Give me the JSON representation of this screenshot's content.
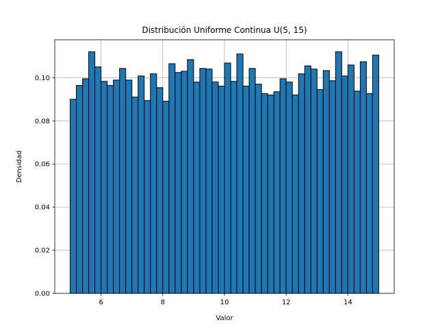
{
  "chart_data": {
    "type": "bar",
    "title": "Distribución Uniforme Continua U(5, 15)",
    "xlabel": "Valor",
    "ylabel": "Densidad",
    "xlim": [
      4.5,
      15.5
    ],
    "ylim": [
      0.0,
      0.1176
    ],
    "grid": true,
    "bin_start": 5,
    "bin_end": 15,
    "bin_width": 0.2,
    "values": [
      0.09,
      0.0964,
      0.0995,
      0.112,
      0.105,
      0.0983,
      0.0964,
      0.0989,
      0.1043,
      0.0989,
      0.091,
      0.1008,
      0.0894,
      0.1018,
      0.0954,
      0.0891,
      0.1065,
      0.1024,
      0.103,
      0.1084,
      0.098,
      0.1043,
      0.104,
      0.098,
      0.0961,
      0.1068,
      0.0983,
      0.111,
      0.0961,
      0.1043,
      0.097,
      0.0926,
      0.092,
      0.0935,
      0.0995,
      0.098,
      0.092,
      0.1018,
      0.1055,
      0.104,
      0.0945,
      0.1033,
      0.0986,
      0.112,
      0.1008,
      0.1059,
      0.0938,
      0.1074,
      0.0926,
      0.1105
    ],
    "xticks": [
      6,
      8,
      10,
      12,
      14
    ],
    "xtick_labels": [
      "6",
      "8",
      "10",
      "12",
      "14"
    ],
    "yticks": [
      0.0,
      0.02,
      0.04,
      0.06,
      0.08,
      0.1
    ],
    "ytick_labels": [
      "0.00",
      "0.02",
      "0.04",
      "0.06",
      "0.08",
      "0.10"
    ],
    "colors": {
      "bar": "#1f77b4",
      "edge": "#000000",
      "grid": "#b0b0b0"
    }
  }
}
